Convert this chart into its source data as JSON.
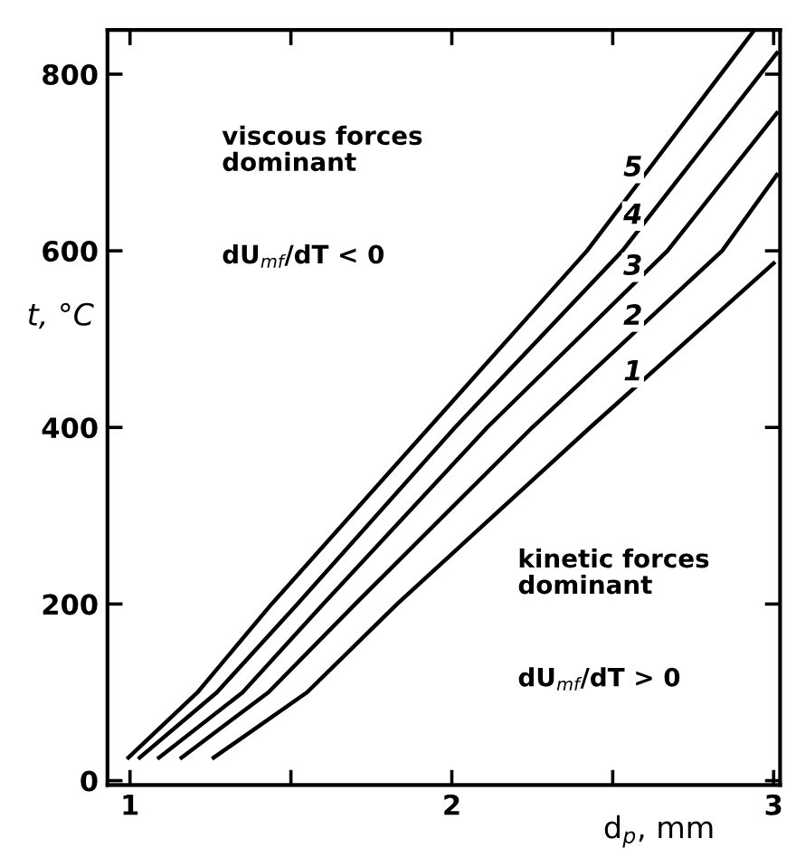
{
  "chart_data": {
    "type": "line",
    "xlabel": "d$_{p}$, mm",
    "ylabel": "t, °C",
    "xlim": [
      0.93,
      3.02
    ],
    "ylim": [
      -5,
      850
    ],
    "xticks": [
      1,
      {
        "value": 1.5,
        "label": null
      },
      2,
      {
        "value": 2.5,
        "label": null
      },
      3
    ],
    "yticks": [
      0,
      200,
      400,
      600,
      800
    ],
    "grid": false,
    "legend": false,
    "marker": "none",
    "line_style": "solid",
    "series": [
      {
        "name": "1",
        "color": "#000000",
        "x": [
          1.26,
          1.55,
          1.83,
          2.43,
          3.0
        ],
        "values": [
          26,
          100,
          200,
          400,
          586
        ]
      },
      {
        "name": "2",
        "color": "#000000",
        "x": [
          1.16,
          1.43,
          1.7,
          2.25,
          2.84,
          3.01
        ],
        "values": [
          26,
          100,
          200,
          400,
          600,
          686
        ]
      },
      {
        "name": "3",
        "color": "#000000",
        "x": [
          1.09,
          1.35,
          1.6,
          2.11,
          2.67,
          3.01
        ],
        "values": [
          26,
          100,
          200,
          400,
          600,
          756
        ]
      },
      {
        "name": "4",
        "color": "#000000",
        "x": [
          1.03,
          1.27,
          1.52,
          2.01,
          2.53,
          3.01
        ],
        "values": [
          26,
          100,
          200,
          400,
          600,
          824
        ]
      },
      {
        "name": "5",
        "color": "#000000",
        "x": [
          0.995,
          1.21,
          1.44,
          1.93,
          2.42,
          2.94
        ],
        "values": [
          26,
          100,
          200,
          400,
          600,
          850
        ]
      }
    ],
    "annotations": [
      "viscous forces\ndominant",
      "dU$_{mf}$/dT < 0",
      "kinetic forces\ndominant",
      "dU$_{mf}$/dT > 0"
    ]
  }
}
